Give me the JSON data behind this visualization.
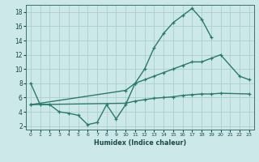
{
  "line1_x": [
    0,
    1,
    2,
    3,
    4,
    5,
    6,
    7,
    8,
    9,
    10,
    11,
    12,
    13,
    14,
    15,
    16,
    17,
    18,
    19,
    20
  ],
  "line1_y": [
    8,
    5,
    5,
    4,
    3.8,
    3.5,
    2.2,
    2.5,
    5,
    3,
    5,
    8,
    10,
    13,
    15,
    16.5,
    17.5,
    18.5,
    17,
    14.5,
    null
  ],
  "line2_x": [
    0,
    10,
    11,
    12,
    13,
    14,
    15,
    16,
    17,
    18,
    19,
    20,
    22,
    23
  ],
  "line2_y": [
    5,
    7,
    8,
    8.5,
    9,
    9.5,
    10,
    10.5,
    11,
    11,
    11.5,
    12,
    9,
    8.5
  ],
  "line3_x": [
    0,
    10,
    11,
    12,
    13,
    14,
    15,
    16,
    17,
    18,
    19,
    20,
    23
  ],
  "line3_y": [
    5,
    5.2,
    5.5,
    5.7,
    5.9,
    6.0,
    6.1,
    6.3,
    6.4,
    6.5,
    6.5,
    6.6,
    6.5
  ],
  "color": "#2a7a6a",
  "bg_color": "#cce8e8",
  "grid_color": "#aad0d0",
  "xlabel": "Humidex (Indice chaleur)",
  "xlim": [
    -0.5,
    23.5
  ],
  "ylim": [
    1.5,
    19
  ],
  "yticks": [
    2,
    4,
    6,
    8,
    10,
    12,
    14,
    16,
    18
  ],
  "xticks": [
    0,
    1,
    2,
    3,
    4,
    5,
    6,
    7,
    8,
    9,
    10,
    11,
    12,
    13,
    14,
    15,
    16,
    17,
    18,
    19,
    20,
    21,
    22,
    23
  ],
  "xlabel_fontsize": 5.8,
  "ylabel_fontsize": 5.5,
  "tick_fontsize_x": 4.5,
  "tick_fontsize_y": 5.5,
  "lw": 1.0,
  "ms": 3.5
}
